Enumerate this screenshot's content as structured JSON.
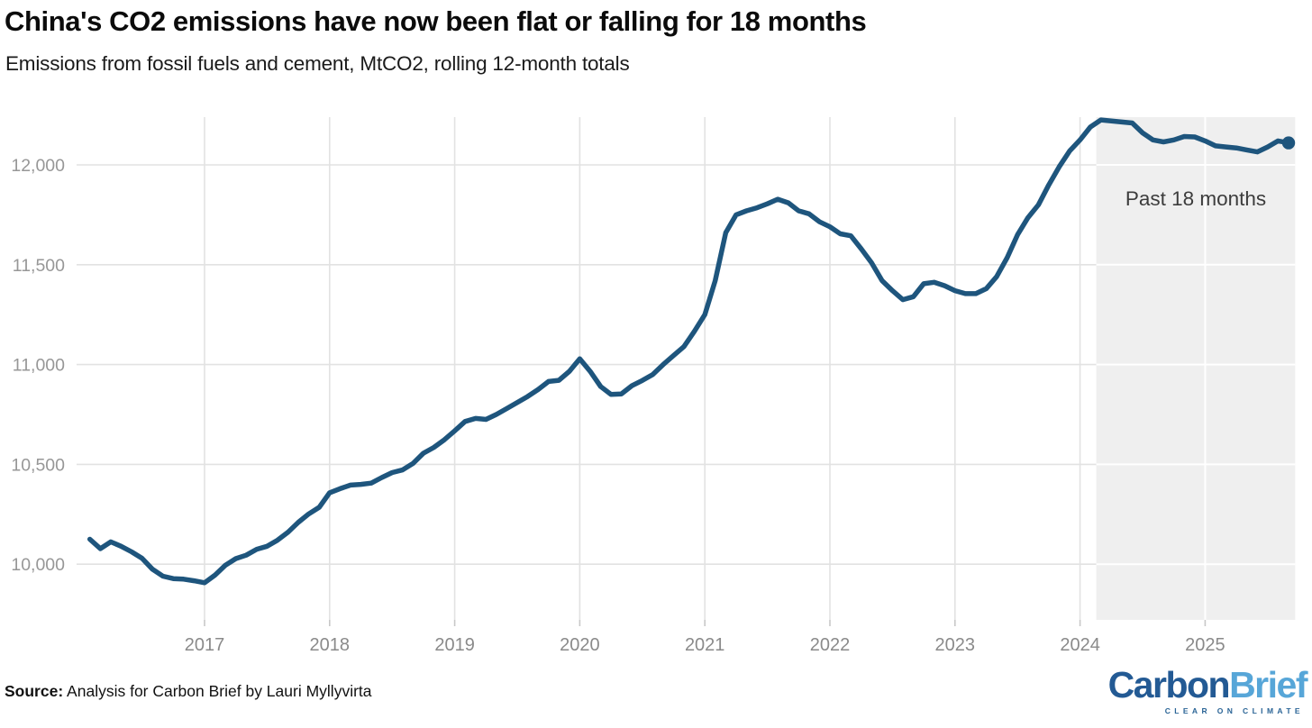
{
  "header": {
    "title": "China's CO2 emissions have now been flat or falling for 18 months",
    "subtitle": "Emissions from fossil fuels and cement, MtCO2, rolling 12-month totals"
  },
  "footer": {
    "source_label": "Source:",
    "source_text": " Analysis for Carbon Brief by Lauri Myllyvirta",
    "logo": {
      "word1": "Carbon",
      "word2": "Brief",
      "tagline": "CLEAR ON CLIMATE"
    }
  },
  "chart_data": {
    "type": "line",
    "title": "China's CO2 emissions have now been flat or falling for 18 months",
    "subtitle": "Emissions from fossil fuels and cement, MtCO2, rolling 12-month totals",
    "xlabel": "",
    "ylabel": "MtCO2, rolling 12-month totals",
    "x_ticks": [
      2017,
      2018,
      2019,
      2020,
      2021,
      2022,
      2023,
      2024,
      2025
    ],
    "y_ticks": [
      10000,
      10500,
      11000,
      11500,
      12000
    ],
    "ylim": [
      9830,
      12290
    ],
    "xlim": [
      2016.0,
      2025.76
    ],
    "grid": true,
    "legend_position": "none",
    "highlight": {
      "label": "Past 18 months",
      "start_year": 2024.13,
      "end_year": 2025.72
    },
    "colors": {
      "line": "#1e557d",
      "highlight_fill": "#efefef",
      "grid": "#e2e2e2",
      "grid_in_highlight": "#ffffff",
      "tick": "#c8c8c8",
      "y_label": "#979797",
      "x_label": "#8a8a8a",
      "annotation": "#3c3c3c"
    },
    "series": [
      {
        "name": "China CO2 emissions, fossil fuels and cement (MtCO2, rolling 12-month total)",
        "points": [
          [
            2016.083,
            10125
          ],
          [
            2016.167,
            10078
          ],
          [
            2016.25,
            10112
          ],
          [
            2016.333,
            10090
          ],
          [
            2016.417,
            10062
          ],
          [
            2016.5,
            10030
          ],
          [
            2016.583,
            9975
          ],
          [
            2016.667,
            9940
          ],
          [
            2016.75,
            9928
          ],
          [
            2016.833,
            9925
          ],
          [
            2016.917,
            9917
          ],
          [
            2017,
            9907
          ],
          [
            2017.083,
            9945
          ],
          [
            2017.167,
            9995
          ],
          [
            2017.25,
            10028
          ],
          [
            2017.333,
            10045
          ],
          [
            2017.417,
            10075
          ],
          [
            2017.5,
            10090
          ],
          [
            2017.583,
            10120
          ],
          [
            2017.667,
            10160
          ],
          [
            2017.75,
            10210
          ],
          [
            2017.833,
            10252
          ],
          [
            2017.917,
            10285
          ],
          [
            2018,
            10358
          ],
          [
            2018.083,
            10378
          ],
          [
            2018.167,
            10396
          ],
          [
            2018.25,
            10400
          ],
          [
            2018.333,
            10406
          ],
          [
            2018.417,
            10434
          ],
          [
            2018.5,
            10459
          ],
          [
            2018.583,
            10472
          ],
          [
            2018.667,
            10505
          ],
          [
            2018.75,
            10556
          ],
          [
            2018.833,
            10585
          ],
          [
            2018.917,
            10623
          ],
          [
            2019,
            10668
          ],
          [
            2019.083,
            10715
          ],
          [
            2019.167,
            10730
          ],
          [
            2019.25,
            10725
          ],
          [
            2019.333,
            10750
          ],
          [
            2019.417,
            10780
          ],
          [
            2019.5,
            10810
          ],
          [
            2019.583,
            10840
          ],
          [
            2019.667,
            10875
          ],
          [
            2019.75,
            10915
          ],
          [
            2019.833,
            10921
          ],
          [
            2019.917,
            10966
          ],
          [
            2020,
            11029
          ],
          [
            2020.083,
            10966
          ],
          [
            2020.167,
            10890
          ],
          [
            2020.25,
            10850
          ],
          [
            2020.333,
            10853
          ],
          [
            2020.417,
            10894
          ],
          [
            2020.5,
            10920
          ],
          [
            2020.583,
            10950
          ],
          [
            2020.667,
            11000
          ],
          [
            2020.75,
            11045
          ],
          [
            2020.833,
            11090
          ],
          [
            2020.917,
            11167
          ],
          [
            2021,
            11250
          ],
          [
            2021.083,
            11420
          ],
          [
            2021.167,
            11660
          ],
          [
            2021.25,
            11750
          ],
          [
            2021.333,
            11770
          ],
          [
            2021.417,
            11785
          ],
          [
            2021.5,
            11805
          ],
          [
            2021.583,
            11828
          ],
          [
            2021.667,
            11810
          ],
          [
            2021.75,
            11770
          ],
          [
            2021.833,
            11755
          ],
          [
            2021.917,
            11715
          ],
          [
            2022,
            11690
          ],
          [
            2022.083,
            11655
          ],
          [
            2022.167,
            11645
          ],
          [
            2022.25,
            11580
          ],
          [
            2022.333,
            11510
          ],
          [
            2022.417,
            11420
          ],
          [
            2022.5,
            11370
          ],
          [
            2022.583,
            11325
          ],
          [
            2022.667,
            11340
          ],
          [
            2022.75,
            11405
          ],
          [
            2022.833,
            11412
          ],
          [
            2022.917,
            11395
          ],
          [
            2023,
            11370
          ],
          [
            2023.083,
            11355
          ],
          [
            2023.167,
            11355
          ],
          [
            2023.25,
            11380
          ],
          [
            2023.333,
            11440
          ],
          [
            2023.417,
            11535
          ],
          [
            2023.5,
            11650
          ],
          [
            2023.583,
            11735
          ],
          [
            2023.667,
            11800
          ],
          [
            2023.75,
            11900
          ],
          [
            2023.833,
            11990
          ],
          [
            2023.917,
            12070
          ],
          [
            2024,
            12125
          ],
          [
            2024.083,
            12190
          ],
          [
            2024.167,
            12225
          ],
          [
            2024.25,
            12220
          ],
          [
            2024.333,
            12215
          ],
          [
            2024.417,
            12210
          ],
          [
            2024.5,
            12160
          ],
          [
            2024.583,
            12125
          ],
          [
            2024.667,
            12115
          ],
          [
            2024.75,
            12125
          ],
          [
            2024.833,
            12142
          ],
          [
            2024.917,
            12140
          ],
          [
            2025,
            12120
          ],
          [
            2025.083,
            12095
          ],
          [
            2025.167,
            12090
          ],
          [
            2025.25,
            12085
          ],
          [
            2025.333,
            12075
          ],
          [
            2025.417,
            12065
          ],
          [
            2025.5,
            12090
          ],
          [
            2025.583,
            12120
          ],
          [
            2025.667,
            12110
          ]
        ]
      }
    ],
    "end_point": {
      "t": 2025.667,
      "value": 12110,
      "marker": "dot"
    }
  }
}
